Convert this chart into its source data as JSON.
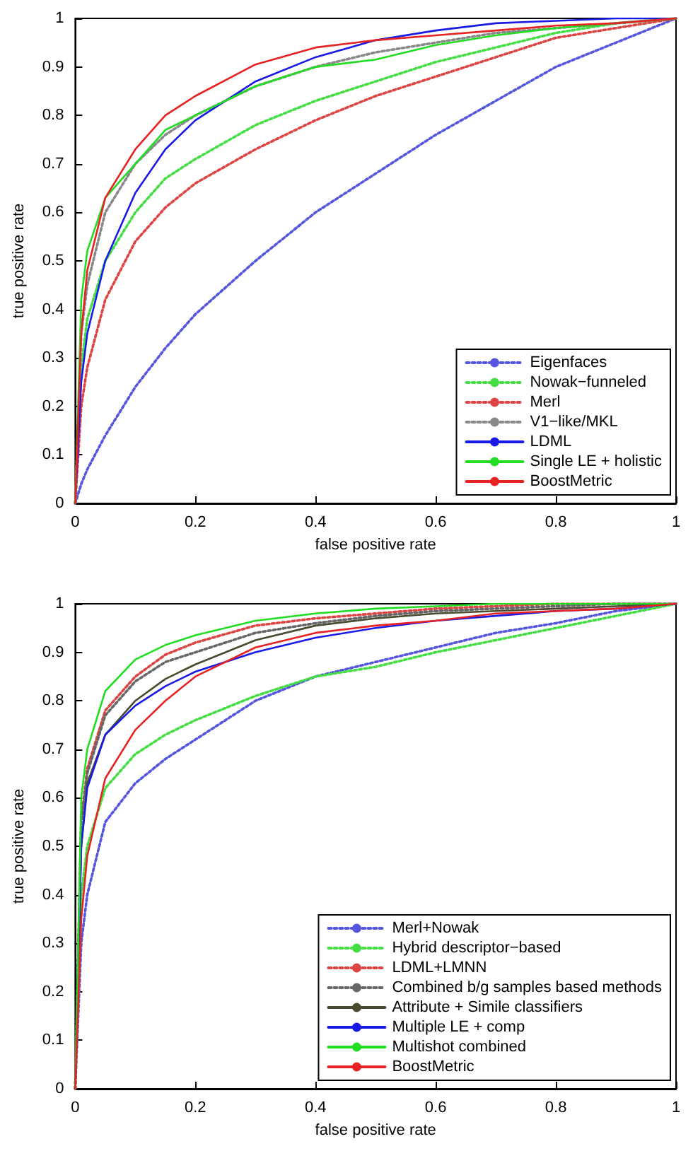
{
  "chart_data": [
    {
      "type": "line",
      "xlabel": "false positive rate",
      "ylabel": "true positive rate",
      "x": [
        0,
        0.01,
        0.02,
        0.05,
        0.1,
        0.15,
        0.2,
        0.3,
        0.4,
        0.5,
        0.6,
        0.7,
        0.8,
        0.9,
        1
      ],
      "xlim": [
        0,
        1
      ],
      "ylim": [
        0,
        1
      ],
      "xticks": [
        0,
        0.2,
        0.4,
        0.6,
        0.8,
        1
      ],
      "yticks": [
        0,
        0.1,
        0.2,
        0.3,
        0.4,
        0.5,
        0.6,
        0.7,
        0.8,
        0.9,
        1
      ],
      "grid": false,
      "legend": "bottom right",
      "marker": "none",
      "series": [
        {
          "name": "Eigenfaces",
          "color": "#5555dd",
          "line_style": "dotted",
          "values": [
            0,
            0.04,
            0.07,
            0.14,
            0.24,
            0.32,
            0.39,
            0.5,
            0.6,
            0.68,
            0.76,
            0.83,
            0.9,
            0.95,
            1
          ]
        },
        {
          "name": "Nowak−funneled",
          "color": "#44dd44",
          "line_style": "dotted",
          "values": [
            0,
            0.28,
            0.38,
            0.5,
            0.6,
            0.67,
            0.71,
            0.78,
            0.83,
            0.87,
            0.91,
            0.94,
            0.97,
            0.99,
            1
          ]
        },
        {
          "name": "Merl",
          "color": "#dd4444",
          "line_style": "dotted",
          "values": [
            0,
            0.2,
            0.28,
            0.42,
            0.54,
            0.61,
            0.66,
            0.73,
            0.79,
            0.84,
            0.88,
            0.92,
            0.96,
            0.98,
            1
          ]
        },
        {
          "name": "V1−like/MKL",
          "color": "#888888",
          "line_style": "dotted",
          "values": [
            0,
            0.35,
            0.45,
            0.6,
            0.7,
            0.76,
            0.8,
            0.86,
            0.9,
            0.93,
            0.95,
            0.97,
            0.98,
            0.99,
            1
          ]
        },
        {
          "name": "LDML",
          "color": "#1a1ae6",
          "line_style": "solid",
          "values": [
            0,
            0.25,
            0.35,
            0.5,
            0.64,
            0.73,
            0.79,
            0.87,
            0.92,
            0.955,
            0.975,
            0.99,
            0.995,
            1,
            1
          ]
        },
        {
          "name": "Single LE + holistic",
          "color": "#22dd22",
          "line_style": "solid",
          "values": [
            0,
            0.42,
            0.52,
            0.63,
            0.7,
            0.77,
            0.8,
            0.86,
            0.9,
            0.915,
            0.945,
            0.965,
            0.98,
            0.99,
            1
          ]
        },
        {
          "name": "BoostMetric",
          "color": "#e62222",
          "line_style": "solid",
          "values": [
            0,
            0.35,
            0.48,
            0.63,
            0.73,
            0.8,
            0.84,
            0.905,
            0.94,
            0.955,
            0.965,
            0.975,
            0.985,
            0.99,
            1
          ]
        }
      ]
    },
    {
      "type": "line",
      "xlabel": "false positive rate",
      "ylabel": "true positive rate",
      "x": [
        0,
        0.01,
        0.02,
        0.05,
        0.1,
        0.15,
        0.2,
        0.3,
        0.4,
        0.5,
        0.6,
        0.7,
        0.8,
        0.9,
        1
      ],
      "xlim": [
        0,
        1
      ],
      "ylim": [
        0,
        1
      ],
      "xticks": [
        0,
        0.2,
        0.4,
        0.6,
        0.8,
        1
      ],
      "yticks": [
        0,
        0.1,
        0.2,
        0.3,
        0.4,
        0.5,
        0.6,
        0.7,
        0.8,
        0.9,
        1
      ],
      "grid": false,
      "legend": "bottom right",
      "marker": "none",
      "series": [
        {
          "name": "Merl+Nowak",
          "color": "#5555dd",
          "line_style": "dotted",
          "values": [
            0,
            0.3,
            0.4,
            0.55,
            0.63,
            0.68,
            0.72,
            0.8,
            0.85,
            0.88,
            0.91,
            0.94,
            0.96,
            0.985,
            1
          ]
        },
        {
          "name": "Hybrid descriptor−based",
          "color": "#44dd44",
          "line_style": "dotted",
          "values": [
            0,
            0.4,
            0.5,
            0.62,
            0.69,
            0.73,
            0.76,
            0.81,
            0.85,
            0.87,
            0.9,
            0.925,
            0.95,
            0.975,
            1
          ]
        },
        {
          "name": "LDML+LMNN",
          "color": "#dd4444",
          "line_style": "dotted",
          "values": [
            0,
            0.55,
            0.66,
            0.78,
            0.85,
            0.895,
            0.92,
            0.955,
            0.97,
            0.98,
            0.99,
            0.995,
            1,
            1,
            1
          ]
        },
        {
          "name": "Combined b/g samples based methods",
          "color": "#666666",
          "line_style": "dotted",
          "values": [
            0,
            0.55,
            0.65,
            0.77,
            0.84,
            0.88,
            0.9,
            0.94,
            0.96,
            0.975,
            0.985,
            0.99,
            0.995,
            1,
            1
          ]
        },
        {
          "name": "Attribute + Simile classifiers",
          "color": "#4a4a30",
          "line_style": "solid",
          "values": [
            0,
            0.5,
            0.63,
            0.73,
            0.8,
            0.845,
            0.875,
            0.925,
            0.955,
            0.97,
            0.98,
            0.985,
            0.99,
            0.995,
            1
          ]
        },
        {
          "name": "Multiple LE + comp",
          "color": "#1a1ae6",
          "line_style": "solid",
          "values": [
            0,
            0.5,
            0.62,
            0.73,
            0.79,
            0.83,
            0.86,
            0.9,
            0.93,
            0.95,
            0.965,
            0.975,
            0.985,
            0.99,
            1
          ]
        },
        {
          "name": "Multishot combined",
          "color": "#22dd22",
          "line_style": "solid",
          "values": [
            0,
            0.6,
            0.7,
            0.82,
            0.885,
            0.915,
            0.935,
            0.965,
            0.98,
            0.99,
            0.995,
            1,
            1,
            1,
            1
          ]
        },
        {
          "name": "BoostMetric",
          "color": "#e62222",
          "line_style": "solid",
          "values": [
            0,
            0.35,
            0.48,
            0.64,
            0.74,
            0.8,
            0.85,
            0.91,
            0.94,
            0.955,
            0.965,
            0.98,
            0.985,
            0.99,
            1
          ]
        }
      ]
    }
  ]
}
